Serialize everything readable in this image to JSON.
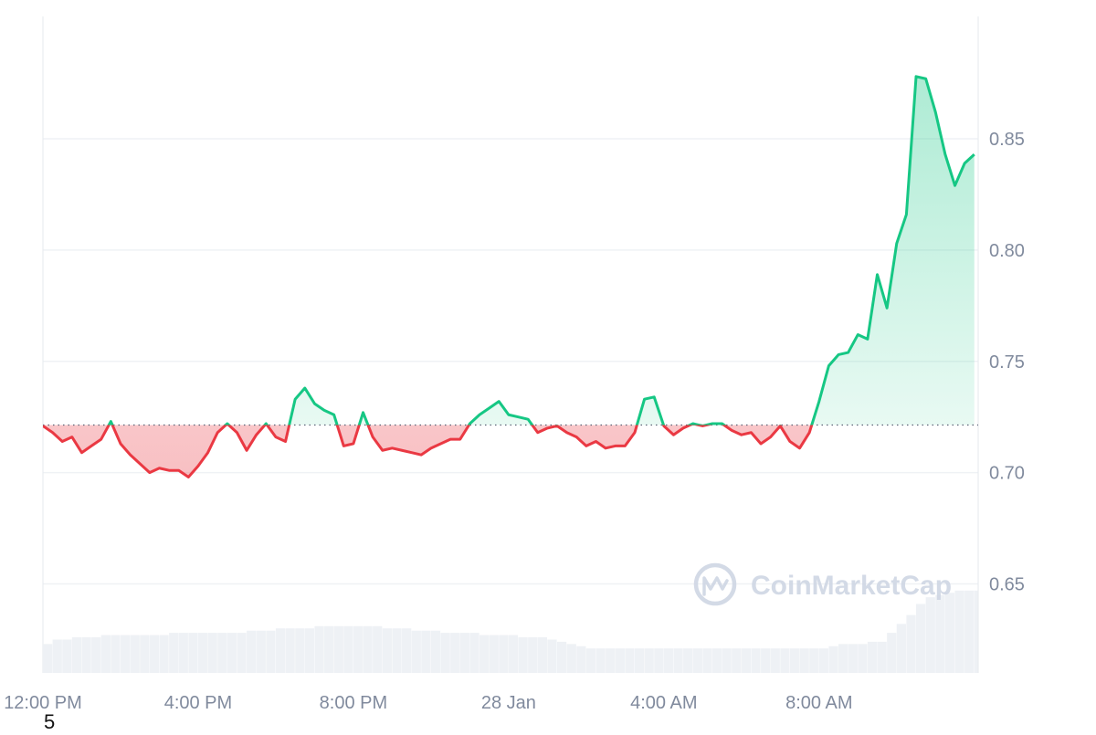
{
  "chart_data": {
    "type": "line",
    "baseline": 0.7214,
    "ylim": [
      0.61,
      0.905
    ],
    "y_ticks": [
      0.65,
      0.7,
      0.75,
      0.8,
      0.85
    ],
    "y_tick_labels": [
      "0.65",
      "0.70",
      "0.75",
      "0.80",
      "0.85"
    ],
    "x_range_hours": [
      0,
      24.1
    ],
    "x_ticks": [
      0,
      4,
      8,
      12,
      16,
      20
    ],
    "x_tick_labels": [
      "12:00 PM",
      "4:00 PM",
      "8:00 PM",
      "28 Jan",
      "4:00 AM",
      "8:00 AM"
    ],
    "price_colors": {
      "above": "#16c784",
      "below": "#ea3943"
    },
    "grid": true,
    "x": [
      0.0,
      0.25,
      0.5,
      0.75,
      1.0,
      1.25,
      1.5,
      1.75,
      2.0,
      2.25,
      2.5,
      2.75,
      3.0,
      3.25,
      3.5,
      3.75,
      4.0,
      4.25,
      4.5,
      4.75,
      5.0,
      5.25,
      5.5,
      5.75,
      6.0,
      6.25,
      6.5,
      6.75,
      7.0,
      7.25,
      7.5,
      7.75,
      8.0,
      8.25,
      8.5,
      8.75,
      9.0,
      9.25,
      9.5,
      9.75,
      10.0,
      10.25,
      10.5,
      10.75,
      11.0,
      11.25,
      11.5,
      11.75,
      12.0,
      12.25,
      12.5,
      12.75,
      13.0,
      13.25,
      13.5,
      13.75,
      14.0,
      14.25,
      14.5,
      14.75,
      15.0,
      15.25,
      15.5,
      15.75,
      16.0,
      16.25,
      16.5,
      16.75,
      17.0,
      17.25,
      17.5,
      17.75,
      18.0,
      18.25,
      18.5,
      18.75,
      19.0,
      19.25,
      19.5,
      19.75,
      20.0,
      20.25,
      20.5,
      20.75,
      21.0,
      21.25,
      21.5,
      21.75,
      22.0,
      22.25,
      22.5,
      22.75,
      23.0,
      23.25,
      23.5,
      23.75,
      24.0
    ],
    "price": [
      0.721,
      0.718,
      0.714,
      0.716,
      0.709,
      0.712,
      0.715,
      0.723,
      0.713,
      0.708,
      0.704,
      0.7,
      0.702,
      0.701,
      0.701,
      0.698,
      0.703,
      0.709,
      0.718,
      0.722,
      0.718,
      0.71,
      0.717,
      0.722,
      0.716,
      0.714,
      0.733,
      0.738,
      0.731,
      0.728,
      0.726,
      0.712,
      0.713,
      0.727,
      0.716,
      0.71,
      0.711,
      0.71,
      0.709,
      0.708,
      0.711,
      0.713,
      0.715,
      0.715,
      0.722,
      0.726,
      0.729,
      0.732,
      0.726,
      0.725,
      0.724,
      0.718,
      0.72,
      0.721,
      0.718,
      0.716,
      0.712,
      0.714,
      0.711,
      0.712,
      0.712,
      0.718,
      0.733,
      0.734,
      0.721,
      0.717,
      0.72,
      0.722,
      0.721,
      0.722,
      0.722,
      0.719,
      0.717,
      0.718,
      0.713,
      0.716,
      0.721,
      0.714,
      0.711,
      0.718,
      0.732,
      0.748,
      0.753,
      0.754,
      0.762,
      0.76,
      0.789,
      0.774,
      0.803,
      0.816,
      0.878,
      0.877,
      0.862,
      0.843,
      0.829,
      0.839,
      0.843
    ],
    "volume_level": [
      0.623,
      0.625,
      0.625,
      0.626,
      0.626,
      0.626,
      0.627,
      0.627,
      0.627,
      0.627,
      0.627,
      0.627,
      0.627,
      0.628,
      0.628,
      0.628,
      0.628,
      0.628,
      0.628,
      0.628,
      0.628,
      0.629,
      0.629,
      0.629,
      0.63,
      0.63,
      0.63,
      0.63,
      0.631,
      0.631,
      0.631,
      0.631,
      0.631,
      0.631,
      0.631,
      0.63,
      0.63,
      0.63,
      0.629,
      0.629,
      0.629,
      0.628,
      0.628,
      0.628,
      0.628,
      0.627,
      0.627,
      0.627,
      0.627,
      0.626,
      0.626,
      0.626,
      0.625,
      0.624,
      0.623,
      0.622,
      0.621,
      0.621,
      0.621,
      0.621,
      0.621,
      0.621,
      0.621,
      0.621,
      0.621,
      0.621,
      0.621,
      0.621,
      0.621,
      0.621,
      0.621,
      0.621,
      0.621,
      0.621,
      0.621,
      0.621,
      0.621,
      0.621,
      0.621,
      0.621,
      0.621,
      0.622,
      0.623,
      0.623,
      0.623,
      0.624,
      0.624,
      0.628,
      0.632,
      0.636,
      0.641,
      0.644,
      0.645,
      0.646,
      0.647,
      0.647,
      0.647
    ]
  },
  "watermark": {
    "text": "CoinMarketCap",
    "icon": "coinmarketcap-logo-icon"
  },
  "stray_label": "5"
}
